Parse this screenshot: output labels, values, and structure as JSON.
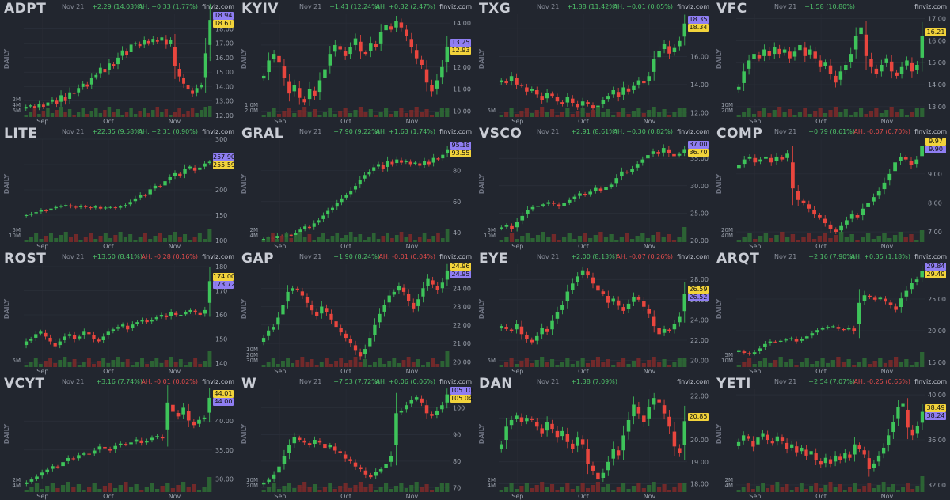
{
  "date": "Nov 21",
  "source": "finviz.com",
  "daily_label": "DAILY",
  "colors": {
    "up": "#3ec45a",
    "down": "#e9463e",
    "vol_up": "#2e6a35",
    "vol_down": "#7a2a2a",
    "tag_yellow": "#f2d33b",
    "tag_purple": "#8f7ef2"
  },
  "panels": [
    {
      "ticker": "ADPT",
      "change": "+2.29 (14.03%)",
      "ah": "AH: +0.33 (1.77%)",
      "ah_dir": "up",
      "tags": [
        {
          "text": "18.94",
          "c": "p"
        },
        {
          "text": "18.61",
          "c": "y"
        }
      ]
    },
    {
      "ticker": "KYIV",
      "change": "+1.41 (12.24%)",
      "ah": "AH: +0.32 (2.47%)",
      "ah_dir": "up",
      "tags": [
        {
          "text": "13.25",
          "c": "p"
        },
        {
          "text": "12.93",
          "c": "y"
        }
      ]
    },
    {
      "ticker": "TXG",
      "change": "+1.88 (11.42%)",
      "ah": "AH: +0.01 (0.05%)",
      "ah_dir": "up",
      "tags": [
        {
          "text": "18.35",
          "c": "p"
        },
        {
          "text": "18.34",
          "c": "y"
        }
      ]
    },
    {
      "ticker": "VFC",
      "change": "+1.58 (10.80%)",
      "ah": "",
      "ah_dir": "up",
      "tags": [
        {
          "text": "16.21",
          "c": "y"
        }
      ]
    },
    {
      "ticker": "LITE",
      "change": "+22.35 (9.58%)",
      "ah": "AH: +2.31 (0.90%)",
      "ah_dir": "up",
      "tags": [
        {
          "text": "257.90",
          "c": "p"
        },
        {
          "text": "255.59",
          "c": "y"
        }
      ]
    },
    {
      "ticker": "GRAL",
      "change": "+7.90 (9.22%)",
      "ah": "AH: +1.63 (1.74%)",
      "ah_dir": "up",
      "tags": [
        {
          "text": "95.18",
          "c": "p"
        },
        {
          "text": "93.55",
          "c": "y"
        }
      ]
    },
    {
      "ticker": "VSCO",
      "change": "+2.91 (8.61%)",
      "ah": "AH: +0.30 (0.82%)",
      "ah_dir": "up",
      "tags": [
        {
          "text": "37.00",
          "c": "p"
        },
        {
          "text": "36.70",
          "c": "y"
        }
      ]
    },
    {
      "ticker": "COMP",
      "change": "+0.79 (8.61%)",
      "ah": "AH: -0.07 (0.70%)",
      "ah_dir": "down",
      "tags": [
        {
          "text": "9.97",
          "c": "y"
        },
        {
          "text": "9.90",
          "c": "p"
        }
      ]
    },
    {
      "ticker": "ROST",
      "change": "+13.50 (8.41%)",
      "ah": "AH: -0.28 (0.16%)",
      "ah_dir": "down",
      "tags": [
        {
          "text": "174.00",
          "c": "y"
        },
        {
          "text": "173.72",
          "c": "p"
        }
      ]
    },
    {
      "ticker": "GAP",
      "change": "+1.90 (8.24%)",
      "ah": "AH: -0.01 (0.04%)",
      "ah_dir": "down",
      "tags": [
        {
          "text": "24.96",
          "c": "y"
        },
        {
          "text": "24.95",
          "c": "p"
        }
      ]
    },
    {
      "ticker": "EYE",
      "change": "+2.00 (8.13%)",
      "ah": "AH: -0.07 (0.26%)",
      "ah_dir": "down",
      "tags": [
        {
          "text": "26.59",
          "c": "y"
        },
        {
          "text": "26.52",
          "c": "p"
        }
      ]
    },
    {
      "ticker": "ARQT",
      "change": "+2.16 (7.90%)",
      "ah": "AH: +0.35 (1.18%)",
      "ah_dir": "up",
      "tags": [
        {
          "text": "29.84",
          "c": "p"
        },
        {
          "text": "29.49",
          "c": "y"
        }
      ]
    },
    {
      "ticker": "VCYT",
      "change": "+3.16 (7.74%)",
      "ah": "AH: -0.01 (0.02%)",
      "ah_dir": "down",
      "tags": [
        {
          "text": "44.01",
          "c": "y"
        },
        {
          "text": "44.00",
          "c": "p"
        }
      ]
    },
    {
      "ticker": "W",
      "change": "+7.53 (7.72%)",
      "ah": "AH: +0.06 (0.06%)",
      "ah_dir": "up",
      "tags": [
        {
          "text": "105.10",
          "c": "p"
        },
        {
          "text": "105.04",
          "c": "y"
        }
      ]
    },
    {
      "ticker": "DAN",
      "change": "+1.38 (7.09%)",
      "ah": "",
      "ah_dir": "up",
      "tags": [
        {
          "text": "20.85",
          "c": "y"
        }
      ]
    },
    {
      "ticker": "YETI",
      "change": "+2.54 (7.07%)",
      "ah": "AH: -0.25 (0.65%)",
      "ah_dir": "down",
      "tags": [
        {
          "text": "38.49",
          "c": "y"
        },
        {
          "text": "38.24",
          "c": "p"
        }
      ]
    }
  ],
  "chart_data": [
    {
      "type": "candlestick",
      "title": "ADPT",
      "x_ticks": [
        "Sep",
        "Oct",
        "Nov"
      ],
      "y_ticks": [
        12,
        13,
        14,
        15,
        16,
        17,
        18
      ],
      "ylim": [
        12,
        19
      ],
      "vol_ticks": [
        "6M",
        "4M",
        "2M"
      ],
      "closes": [
        12.6,
        12.7,
        12.5,
        12.8,
        12.6,
        12.9,
        13.1,
        12.8,
        13.4,
        13.0,
        13.6,
        13.5,
        13.9,
        14.2,
        14.0,
        14.6,
        14.8,
        15.3,
        15.0,
        15.6,
        15.4,
        16.0,
        16.5,
        16.2,
        16.9,
        17.0,
        16.8,
        17.2,
        17.0,
        17.3,
        17.1,
        17.4,
        16.9,
        17.2,
        15.4,
        14.7,
        14.2,
        13.8,
        13.5,
        13.9,
        14.1,
        16.3,
        18.61
      ]
    },
    {
      "type": "candlestick",
      "title": "KYIV",
      "x_ticks": [
        "Sep",
        "Oct",
        "Nov"
      ],
      "y_ticks": [
        10,
        11,
        12,
        13,
        14
      ],
      "ylim": [
        9.8,
        14.4
      ],
      "vol_ticks": [
        "2.0M",
        "1.0M"
      ],
      "closes": [
        11.6,
        12.3,
        12.6,
        12.2,
        11.5,
        10.8,
        11.2,
        10.6,
        10.4,
        11.0,
        10.7,
        11.4,
        11.9,
        12.6,
        13.0,
        12.8,
        12.5,
        12.9,
        13.3,
        12.7,
        12.6,
        13.1,
        12.9,
        13.6,
        13.9,
        13.7,
        14.1,
        13.8,
        13.4,
        12.9,
        12.4,
        12.1,
        11.3,
        10.9,
        11.4,
        12.0,
        12.93
      ]
    },
    {
      "type": "candlestick",
      "title": "TXG",
      "x_ticks": [
        "Sep",
        "Oct",
        "Nov"
      ],
      "y_ticks": [
        12,
        14,
        16,
        18
      ],
      "ylim": [
        11.8,
        19
      ],
      "vol_ticks": [
        "5M"
      ],
      "closes": [
        14.3,
        14.1,
        14.6,
        14.0,
        13.9,
        13.5,
        13.7,
        13.3,
        12.9,
        13.4,
        13.2,
        12.8,
        12.6,
        13.1,
        12.7,
        12.4,
        12.8,
        12.6,
        12.3,
        12.5,
        12.9,
        13.2,
        13.6,
        13.1,
        13.8,
        13.5,
        13.9,
        14.3,
        14.1,
        14.6,
        15.8,
        16.4,
        16.9,
        16.2,
        16.6,
        17.1,
        18.34
      ]
    },
    {
      "type": "candlestick",
      "title": "VFC",
      "x_ticks": [
        "Sep",
        "Oct",
        "Nov"
      ],
      "y_ticks": [
        13,
        14,
        15,
        16,
        17
      ],
      "ylim": [
        12.6,
        17.2
      ],
      "vol_ticks": [
        "20M",
        "10M"
      ],
      "closes": [
        13.9,
        14.6,
        15.1,
        15.4,
        15.2,
        15.6,
        15.3,
        15.7,
        15.4,
        15.6,
        15.2,
        15.5,
        15.8,
        15.3,
        15.6,
        15.2,
        14.8,
        15.0,
        14.5,
        14.1,
        14.6,
        14.9,
        15.4,
        16.2,
        16.6,
        15.3,
        14.8,
        14.5,
        14.9,
        15.2,
        14.6,
        14.4,
        14.8,
        15.1,
        14.6,
        14.9,
        16.21
      ]
    },
    {
      "type": "candlestick",
      "title": "LITE",
      "x_ticks": [
        "Sep",
        "Oct",
        "Nov"
      ],
      "y_ticks": [
        100,
        150,
        200,
        250,
        300
      ],
      "ylim": [
        100,
        300
      ],
      "vol_ticks": [
        "10M",
        "5M"
      ],
      "closes": [
        150,
        153,
        156,
        160,
        158,
        163,
        166,
        168,
        170,
        167,
        165,
        168,
        166,
        164,
        167,
        163,
        165,
        166,
        164,
        167,
        170,
        176,
        183,
        190,
        188,
        201,
        208,
        206,
        217,
        225,
        233,
        228,
        242,
        246,
        238,
        244,
        252,
        255.59
      ]
    },
    {
      "type": "candlestick",
      "title": "GRAL",
      "x_ticks": [
        "Sep",
        "Oct",
        "Nov"
      ],
      "y_ticks": [
        40,
        60,
        80
      ],
      "ylim": [
        35,
        100
      ],
      "vol_ticks": [
        "4M",
        "2M"
      ],
      "closes": [
        36,
        37,
        36,
        38,
        37,
        39,
        38,
        40,
        42,
        44,
        43,
        46,
        48,
        51,
        54,
        56,
        59,
        62,
        64,
        67,
        70,
        74,
        77,
        79,
        82,
        84,
        81,
        86,
        84,
        87,
        85,
        86,
        84,
        85,
        83,
        86,
        84,
        88,
        87,
        90,
        93.55
      ]
    },
    {
      "type": "candlestick",
      "title": "VSCO",
      "x_ticks": [
        "Sep",
        "Oct",
        "Nov"
      ],
      "y_ticks": [
        20,
        25,
        30,
        35
      ],
      "ylim": [
        20,
        38.5
      ],
      "vol_ticks": [
        "10M",
        "5M"
      ],
      "closes": [
        22.4,
        22.8,
        22.1,
        23.4,
        24.5,
        25.6,
        26.1,
        26.3,
        26.6,
        27.0,
        26.7,
        26.2,
        26.8,
        27.4,
        28.0,
        28.6,
        28.3,
        28.9,
        29.6,
        29.1,
        29.7,
        30.2,
        31.4,
        32.6,
        32.4,
        33.1,
        34.0,
        34.8,
        35.6,
        36.3,
        35.8,
        36.9,
        35.9,
        35.4,
        35.8,
        36.7
      ]
    },
    {
      "type": "candlestick",
      "title": "COMP",
      "x_ticks": [
        "Sep",
        "Oct",
        "Nov"
      ],
      "y_ticks": [
        7,
        8,
        9
      ],
      "ylim": [
        6.7,
        10.2
      ],
      "vol_ticks": [
        "40M",
        "20M"
      ],
      "closes": [
        9.3,
        9.5,
        9.6,
        9.4,
        9.5,
        9.6,
        9.4,
        9.6,
        9.5,
        9.7,
        8.5,
        8.1,
        8.0,
        7.8,
        7.6,
        7.5,
        7.3,
        7.1,
        7.0,
        7.2,
        7.4,
        7.6,
        7.5,
        7.8,
        8.0,
        8.2,
        8.4,
        8.7,
        9.0,
        9.4,
        9.6,
        9.5,
        9.3,
        9.5,
        9.97
      ]
    },
    {
      "type": "candlestick",
      "title": "ROST",
      "x_ticks": [
        "Sep",
        "Oct",
        "Nov"
      ],
      "y_ticks": [
        140,
        150,
        160,
        170,
        180
      ],
      "ylim": [
        139,
        181
      ],
      "vol_ticks": [
        "5M"
      ],
      "closes": [
        149,
        150,
        152,
        153,
        151,
        149,
        147,
        149,
        151,
        152,
        150,
        151,
        153,
        152,
        150,
        149,
        151,
        153,
        154,
        155,
        156,
        154,
        156,
        157,
        158,
        157,
        158,
        159,
        160,
        159,
        161,
        160,
        160,
        161,
        162,
        161,
        160,
        162,
        174.0
      ]
    },
    {
      "type": "candlestick",
      "title": "GAP",
      "x_ticks": [
        "Sep",
        "Oct",
        "Nov"
      ],
      "y_ticks": [
        20,
        21,
        22,
        23,
        24
      ],
      "ylim": [
        19.8,
        25.3
      ],
      "vol_ticks": [
        "30M",
        "20M",
        "10M"
      ],
      "closes": [
        21.3,
        21.7,
        21.9,
        22.4,
        23.1,
        23.8,
        24.0,
        23.9,
        23.6,
        23.2,
        22.8,
        22.5,
        23.0,
        22.7,
        22.3,
        21.9,
        21.6,
        21.3,
        21.0,
        20.6,
        20.3,
        20.7,
        21.3,
        22.0,
        22.6,
        23.1,
        23.6,
        23.8,
        24.1,
        23.8,
        23.3,
        22.9,
        23.4,
        24.0,
        24.5,
        24.2,
        23.9,
        24.3,
        24.96
      ]
    },
    {
      "type": "candlestick",
      "title": "EYE",
      "x_ticks": [
        "Sep",
        "Oct",
        "Nov"
      ],
      "y_ticks": [
        20,
        22,
        24,
        26,
        28
      ],
      "ylim": [
        19.5,
        29.5
      ],
      "vol_ticks": [
        "5M"
      ],
      "closes": [
        23.4,
        23.1,
        22.9,
        23.6,
        22.6,
        22.1,
        21.8,
        22.4,
        23.2,
        22.8,
        23.9,
        24.8,
        25.5,
        26.8,
        27.6,
        28.3,
        28.9,
        28.4,
        27.6,
        26.9,
        26.6,
        25.7,
        26.1,
        25.4,
        24.9,
        25.6,
        26.3,
        26.0,
        25.3,
        24.6,
        23.4,
        22.6,
        23.1,
        22.9,
        23.6,
        24.3,
        26.59
      ]
    },
    {
      "type": "candlestick",
      "title": "ARQT",
      "x_ticks": [
        "Sep",
        "Oct",
        "Nov"
      ],
      "y_ticks": [
        15,
        20,
        25
      ],
      "ylim": [
        14.5,
        30.5
      ],
      "vol_ticks": [
        "10M",
        "5M"
      ],
      "closes": [
        16.8,
        16.5,
        16.3,
        16.6,
        17.2,
        17.9,
        18.3,
        18.2,
        18.4,
        18.6,
        18.8,
        18.3,
        18.7,
        19.1,
        19.6,
        20.1,
        20.4,
        20.6,
        20.7,
        20.3,
        20.1,
        20.5,
        19.9,
        24.4,
        25.6,
        25.3,
        24.9,
        25.2,
        24.6,
        24.0,
        23.3,
        25.1,
        26.3,
        27.5,
        28.1,
        29.49
      ]
    },
    {
      "type": "candlestick",
      "title": "VCYT",
      "x_ticks": [
        "Sep",
        "Oct",
        "Nov"
      ],
      "y_ticks": [
        30,
        35,
        40
      ],
      "ylim": [
        28,
        45.5
      ],
      "vol_ticks": [
        "4M",
        "2M"
      ],
      "closes": [
        29.4,
        29.9,
        30.4,
        31.1,
        31.6,
        32.2,
        32.0,
        32.9,
        33.6,
        33.4,
        34.1,
        34.4,
        34.2,
        34.9,
        35.6,
        35.3,
        34.9,
        35.7,
        36.1,
        35.9,
        36.3,
        36.8,
        36.2,
        36.6,
        37.1,
        37.4,
        37.0,
        43.2,
        41.6,
        40.8,
        42.3,
        40.1,
        39.3,
        40.2,
        40.6,
        44.01
      ]
    },
    {
      "type": "candlestick",
      "title": "W",
      "x_ticks": [
        "Sep",
        "Oct",
        "Nov"
      ],
      "y_ticks": [
        70,
        80,
        90,
        100
      ],
      "ylim": [
        69,
        107
      ],
      "vol_ticks": [
        "20M",
        "10M"
      ],
      "closes": [
        72,
        73,
        75,
        78,
        82,
        86,
        89,
        88,
        87,
        86,
        88,
        87,
        85,
        86,
        84,
        83,
        81,
        80,
        78,
        77,
        75,
        74,
        76,
        77,
        79,
        82,
        98,
        99,
        101,
        103,
        104,
        102,
        98,
        97,
        99,
        101,
        105.04
      ]
    },
    {
      "type": "candlestick",
      "title": "DAN",
      "x_ticks": [
        "Sep",
        "Oct",
        "Nov"
      ],
      "y_ticks": [
        18,
        19,
        20,
        21,
        22
      ],
      "ylim": [
        17.7,
        22.3
      ],
      "vol_ticks": [
        "4M",
        "2M"
      ],
      "closes": [
        19.8,
        20.6,
        20.9,
        21.1,
        20.8,
        21.0,
        20.9,
        20.6,
        20.3,
        20.8,
        20.5,
        20.1,
        20.4,
        19.9,
        19.6,
        20.1,
        19.8,
        18.9,
        18.6,
        18.2,
        18.5,
        19.0,
        19.6,
        19.3,
        20.2,
        20.9,
        21.6,
        21.2,
        20.8,
        21.5,
        21.9,
        21.7,
        21.2,
        20.6,
        19.7,
        19.4,
        20.85
      ]
    },
    {
      "type": "candlestick",
      "title": "YETI",
      "x_ticks": [
        "Sep",
        "Oct",
        "Nov"
      ],
      "y_ticks": [
        32,
        36,
        40
      ],
      "ylim": [
        31.5,
        40.5
      ],
      "vol_ticks": [
        "4M",
        "2M"
      ],
      "closes": [
        35.8,
        36.4,
        36.1,
        35.4,
        36.2,
        36.6,
        36.0,
        35.7,
        36.3,
        35.9,
        35.2,
        35.6,
        34.9,
        35.3,
        34.6,
        35.0,
        34.2,
        33.8,
        34.4,
        33.9,
        34.6,
        34.2,
        34.8,
        34.4,
        35.6,
        35.2,
        34.7,
        33.4,
        33.9,
        34.6,
        35.3,
        36.4,
        37.6,
        38.9,
        39.2,
        37.1,
        36.4,
        37.2,
        38.49
      ]
    }
  ]
}
